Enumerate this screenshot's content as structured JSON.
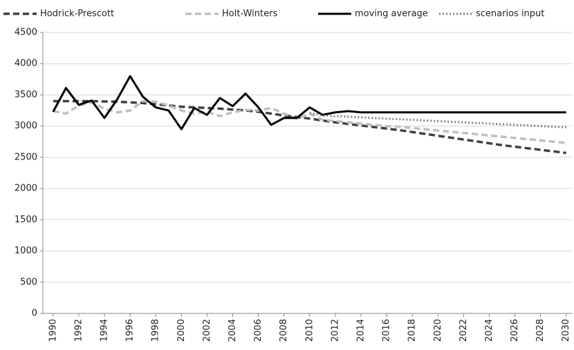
{
  "chart_data": {
    "type": "line",
    "x": [
      1990,
      1991,
      1992,
      1993,
      1994,
      1995,
      1996,
      1997,
      1998,
      1999,
      2000,
      2001,
      2002,
      2003,
      2004,
      2005,
      2006,
      2007,
      2008,
      2009,
      2010,
      2011,
      2012,
      2013,
      2014,
      2015,
      2016,
      2017,
      2018,
      2019,
      2020,
      2021,
      2022,
      2023,
      2024,
      2025,
      2026,
      2027,
      2028,
      2029,
      2030
    ],
    "series": [
      {
        "name": "Hodrick-Prescott",
        "color": "#404040",
        "dash": "dashed",
        "values": [
          3400,
          3400,
          3400,
          3400,
          3395,
          3390,
          3380,
          3370,
          3350,
          3330,
          3310,
          3300,
          3290,
          3280,
          3265,
          3250,
          3230,
          3200,
          3170,
          3145,
          3120,
          3090,
          3060,
          3035,
          3010,
          2985,
          2960,
          2935,
          2905,
          2875,
          2845,
          2815,
          2785,
          2755,
          2725,
          2695,
          2670,
          2645,
          2620,
          2595,
          2570
        ]
      },
      {
        "name": "Holt-Winters",
        "color": "#bfbfbf",
        "dash": "dashed",
        "values": [
          3240,
          3200,
          3330,
          3380,
          3280,
          3220,
          3250,
          3400,
          3390,
          3330,
          3250,
          3200,
          3230,
          3160,
          3220,
          3260,
          3250,
          3290,
          3200,
          3120,
          3200,
          3100,
          3080,
          3060,
          3040,
          3020,
          3000,
          2990,
          2970,
          2950,
          2930,
          2910,
          2890,
          2870,
          2850,
          2830,
          2810,
          2790,
          2770,
          2750,
          2730
        ]
      },
      {
        "name": "moving average",
        "color": "#000000",
        "dash": "solid",
        "values": [
          3230,
          3610,
          3340,
          3410,
          3130,
          3430,
          3800,
          3470,
          3300,
          3250,
          2950,
          3290,
          3180,
          3450,
          3320,
          3520,
          3300,
          3020,
          3130,
          3130,
          3300,
          3180,
          3220,
          3240,
          3220,
          3220,
          3220,
          3220,
          3220,
          3220,
          3220,
          3220,
          3220,
          3220,
          3220,
          3220,
          3220,
          3220,
          3220,
          3220,
          3220
        ]
      },
      {
        "name": "scenarios input",
        "color": "#808080",
        "dash": "dotted",
        "values": [
          null,
          null,
          null,
          null,
          null,
          null,
          null,
          null,
          null,
          null,
          null,
          null,
          null,
          null,
          null,
          null,
          null,
          null,
          null,
          null,
          3210,
          3170,
          3160,
          3150,
          3140,
          3130,
          3120,
          3110,
          3100,
          3090,
          3080,
          3070,
          3060,
          3050,
          3040,
          3030,
          3020,
          3010,
          3000,
          2990,
          2980
        ]
      }
    ],
    "xlim": [
      1989.2,
      2030.5
    ],
    "xticks": [
      1990,
      1992,
      1994,
      1996,
      1998,
      2000,
      2002,
      2004,
      2006,
      2008,
      2010,
      2012,
      2014,
      2016,
      2018,
      2020,
      2022,
      2024,
      2026,
      2028,
      2030
    ],
    "ylim": [
      0,
      4500
    ],
    "yticks": [
      0,
      500,
      1000,
      1500,
      2000,
      2500,
      3000,
      3500,
      4000,
      4500
    ],
    "grid": true,
    "legend": "top"
  }
}
